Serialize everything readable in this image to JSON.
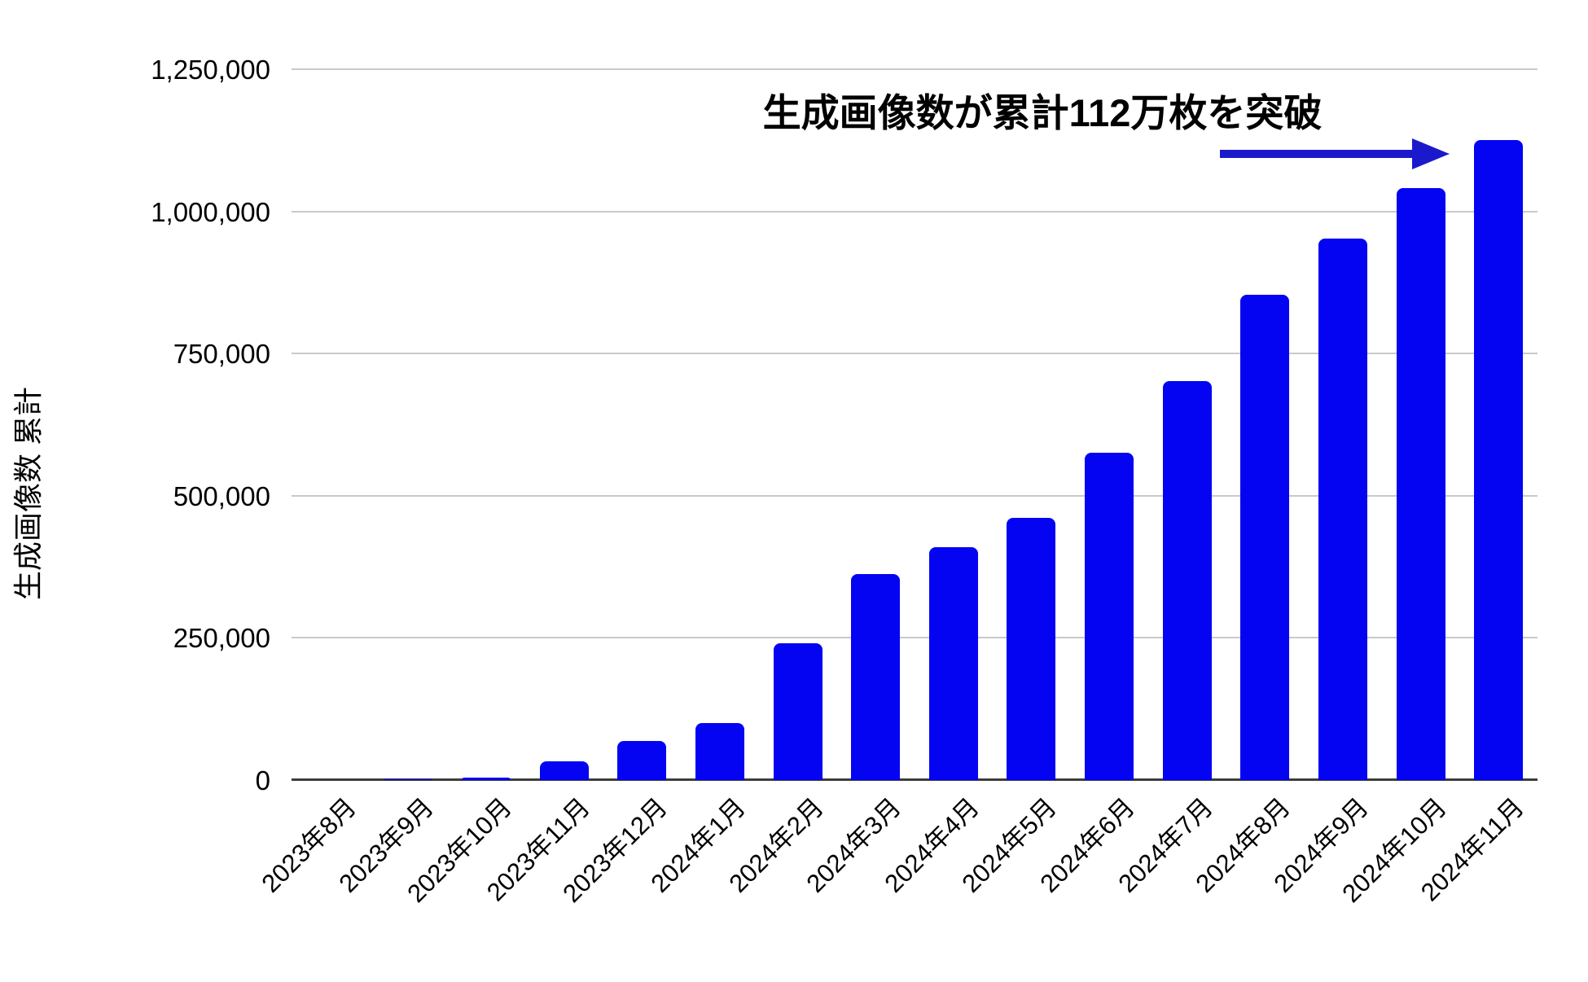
{
  "chart_data": {
    "type": "bar",
    "title": "生成画像数が累計112万枚を突破",
    "xlabel": "",
    "ylabel": "生成画像数 累計",
    "categories": [
      "2023年8月",
      "2023年9月",
      "2023年10月",
      "2023年11月",
      "2023年12月",
      "2024年1月",
      "2024年2月",
      "2024年3月",
      "2024年4月",
      "2024年5月",
      "2024年6月",
      "2024年7月",
      "2024年8月",
      "2024年9月",
      "2024年10月",
      "2024年11月"
    ],
    "values": [
      0,
      1000,
      4000,
      33000,
      69000,
      100000,
      240000,
      362000,
      410000,
      461000,
      576000,
      701000,
      854000,
      952000,
      1041000,
      1125000
    ],
    "ylim": [
      0,
      1250000
    ],
    "yticks": [
      0,
      250000,
      500000,
      750000,
      1000000,
      1250000
    ],
    "ytick_labels": [
      "0",
      "250,000",
      "500,000",
      "750,000",
      "1,000,000",
      "1,250,000"
    ],
    "grid": true,
    "legend": "none",
    "bar_color": "#0404f2",
    "gridline_color": "#c9c9c9",
    "axis_color": "#3d3d3d",
    "annotation": {
      "type": "arrow",
      "direction": "right",
      "color": "#1a1acc",
      "points_to": "2024年11月"
    }
  }
}
